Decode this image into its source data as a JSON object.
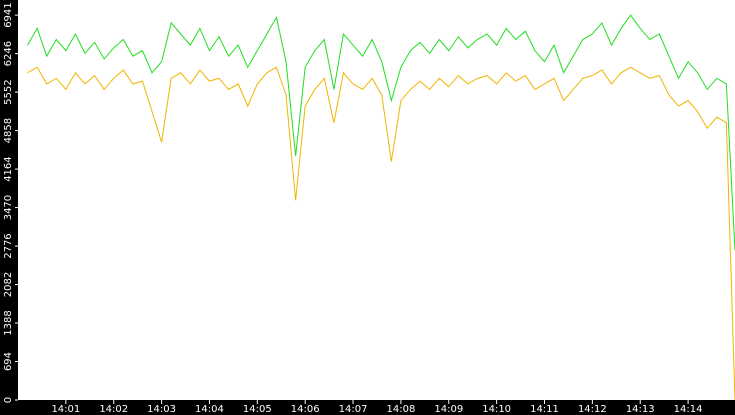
{
  "chart_data": {
    "type": "line",
    "x": [
      0.2,
      0.4,
      0.6,
      0.8,
      1.0,
      1.2,
      1.4,
      1.6,
      1.8,
      2.0,
      2.2,
      2.4,
      2.6,
      2.8,
      3.0,
      3.2,
      3.4,
      3.6,
      3.8,
      4.0,
      4.2,
      4.4,
      4.6,
      4.8,
      5.0,
      5.2,
      5.4,
      5.6,
      5.8,
      6.0,
      6.2,
      6.4,
      6.6,
      6.8,
      7.0,
      7.2,
      7.4,
      7.6,
      7.8,
      8.0,
      8.2,
      8.4,
      8.6,
      8.8,
      9.0,
      9.2,
      9.4,
      9.6,
      9.8,
      10.0,
      10.2,
      10.4,
      10.6,
      10.8,
      11.0,
      11.2,
      11.4,
      11.6,
      11.8,
      12.0,
      12.2,
      12.4,
      12.6,
      12.8,
      13.0,
      13.2,
      13.4,
      13.6,
      13.8,
      14.0,
      14.2,
      14.4,
      14.6,
      14.8,
      14.98
    ],
    "series": [
      {
        "color": "#f0b400",
        "values": [
          5900,
          6000,
          5700,
          5800,
          5600,
          5900,
          5700,
          5850,
          5600,
          5800,
          5950,
          5700,
          5750,
          5200,
          4650,
          5800,
          5900,
          5700,
          5950,
          5750,
          5800,
          5600,
          5700,
          5300,
          5700,
          5900,
          6000,
          5500,
          3600,
          5300,
          5600,
          5800,
          5000,
          5900,
          5700,
          5600,
          5800,
          5500,
          4300,
          5400,
          5600,
          5750,
          5600,
          5800,
          5650,
          5850,
          5700,
          5800,
          5850,
          5700,
          5900,
          5750,
          5850,
          5600,
          5700,
          5800,
          5400,
          5600,
          5800,
          5850,
          5950,
          5700,
          5900,
          6000,
          5900,
          5800,
          5850,
          5500,
          5300,
          5400,
          5200,
          4900,
          5100,
          5000,
          0
        ]
      },
      {
        "color": "#22dd22",
        "values": [
          6400,
          6700,
          6200,
          6500,
          6300,
          6600,
          6250,
          6450,
          6150,
          6350,
          6500,
          6200,
          6300,
          5900,
          6100,
          6800,
          6600,
          6400,
          6700,
          6300,
          6550,
          6200,
          6400,
          6000,
          6300,
          6600,
          6900,
          6100,
          4400,
          6000,
          6300,
          6500,
          5600,
          6600,
          6400,
          6200,
          6500,
          6100,
          5400,
          6000,
          6300,
          6450,
          6250,
          6500,
          6300,
          6550,
          6350,
          6500,
          6600,
          6400,
          6700,
          6500,
          6650,
          6300,
          6100,
          6400,
          5900,
          6200,
          6500,
          6600,
          6800,
          6400,
          6700,
          6941,
          6700,
          6500,
          6600,
          6200,
          5800,
          6100,
          5900,
          5600,
          5800,
          5700,
          2700
        ]
      }
    ],
    "xlim": [
      0,
      14.98
    ],
    "xticks": [
      {
        "value": 1,
        "label": "14:01"
      },
      {
        "value": 2,
        "label": "14:02"
      },
      {
        "value": 3,
        "label": "14:03"
      },
      {
        "value": 4,
        "label": "14:04"
      },
      {
        "value": 5,
        "label": "14:05"
      },
      {
        "value": 6,
        "label": "14:06"
      },
      {
        "value": 7,
        "label": "14:07"
      },
      {
        "value": 8,
        "label": "14:08"
      },
      {
        "value": 9,
        "label": "14:09"
      },
      {
        "value": 10,
        "label": "14:10"
      },
      {
        "value": 11,
        "label": "14:11"
      },
      {
        "value": 12,
        "label": "14:12"
      },
      {
        "value": 13,
        "label": "14:13"
      },
      {
        "value": 14,
        "label": "14:14"
      }
    ],
    "ylim": [
      0,
      7213
    ],
    "yticks": [
      0,
      694,
      1388,
      2082,
      2776,
      3470,
      4164,
      4858,
      5552,
      6246,
      6941
    ]
  }
}
